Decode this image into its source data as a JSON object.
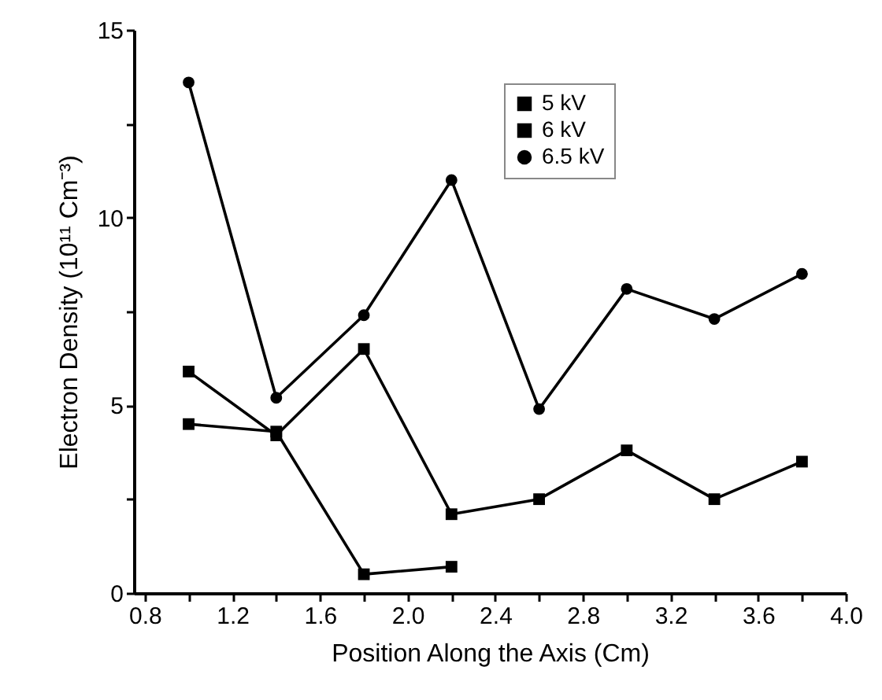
{
  "chart_data": {
    "type": "line",
    "xlabel": "Position Along the Axis (Cm)",
    "ylabel": "Electron Density (10¹¹ Cm⁻³)",
    "x": [
      1.0,
      1.4,
      1.8,
      2.2,
      2.6,
      3.0,
      3.4,
      3.8
    ],
    "series": [
      {
        "name": "5 kV",
        "color": "#000000",
        "marker": "square",
        "values": [
          4.5,
          4.3,
          0.5,
          0.7,
          null,
          null,
          null,
          null
        ]
      },
      {
        "name": "6 kV",
        "color": "#000000",
        "marker": "square",
        "values": [
          5.9,
          4.2,
          6.5,
          2.1,
          2.5,
          3.8,
          2.5,
          3.5
        ]
      },
      {
        "name": "6.5 kV",
        "color": "#000000",
        "marker": "circle",
        "values": [
          13.6,
          5.2,
          7.4,
          11.0,
          4.9,
          8.1,
          7.3,
          8.5
        ]
      }
    ],
    "xlim": [
      0.75,
      4.0
    ],
    "xticks": [
      {
        "value": 0.8,
        "label": "0.8"
      },
      {
        "value": 1.0,
        "label": null
      },
      {
        "value": 1.2,
        "label": "1.2"
      },
      {
        "value": 1.4,
        "label": null
      },
      {
        "value": 1.6,
        "label": "1.6"
      },
      {
        "value": 1.8,
        "label": null
      },
      {
        "value": 2.0,
        "label": "2.0"
      },
      {
        "value": 2.2,
        "label": null
      },
      {
        "value": 2.4,
        "label": "2.4"
      },
      {
        "value": 2.6,
        "label": null
      },
      {
        "value": 2.8,
        "label": "2.8"
      },
      {
        "value": 3.0,
        "label": null
      },
      {
        "value": 3.2,
        "label": "3.2"
      },
      {
        "value": 3.4,
        "label": null
      },
      {
        "value": 3.6,
        "label": "3.6"
      },
      {
        "value": 3.8,
        "label": null
      },
      {
        "value": 4.0,
        "label": "4.0"
      }
    ],
    "ylim": [
      0,
      15
    ],
    "yticks": [
      0,
      {
        "value": 2.5,
        "label": null
      },
      5,
      {
        "value": 7.5,
        "label": null
      },
      10,
      {
        "value": 12.5,
        "label": null
      },
      15
    ],
    "grid": false,
    "legend": "top right",
    "line_style": "solid"
  }
}
